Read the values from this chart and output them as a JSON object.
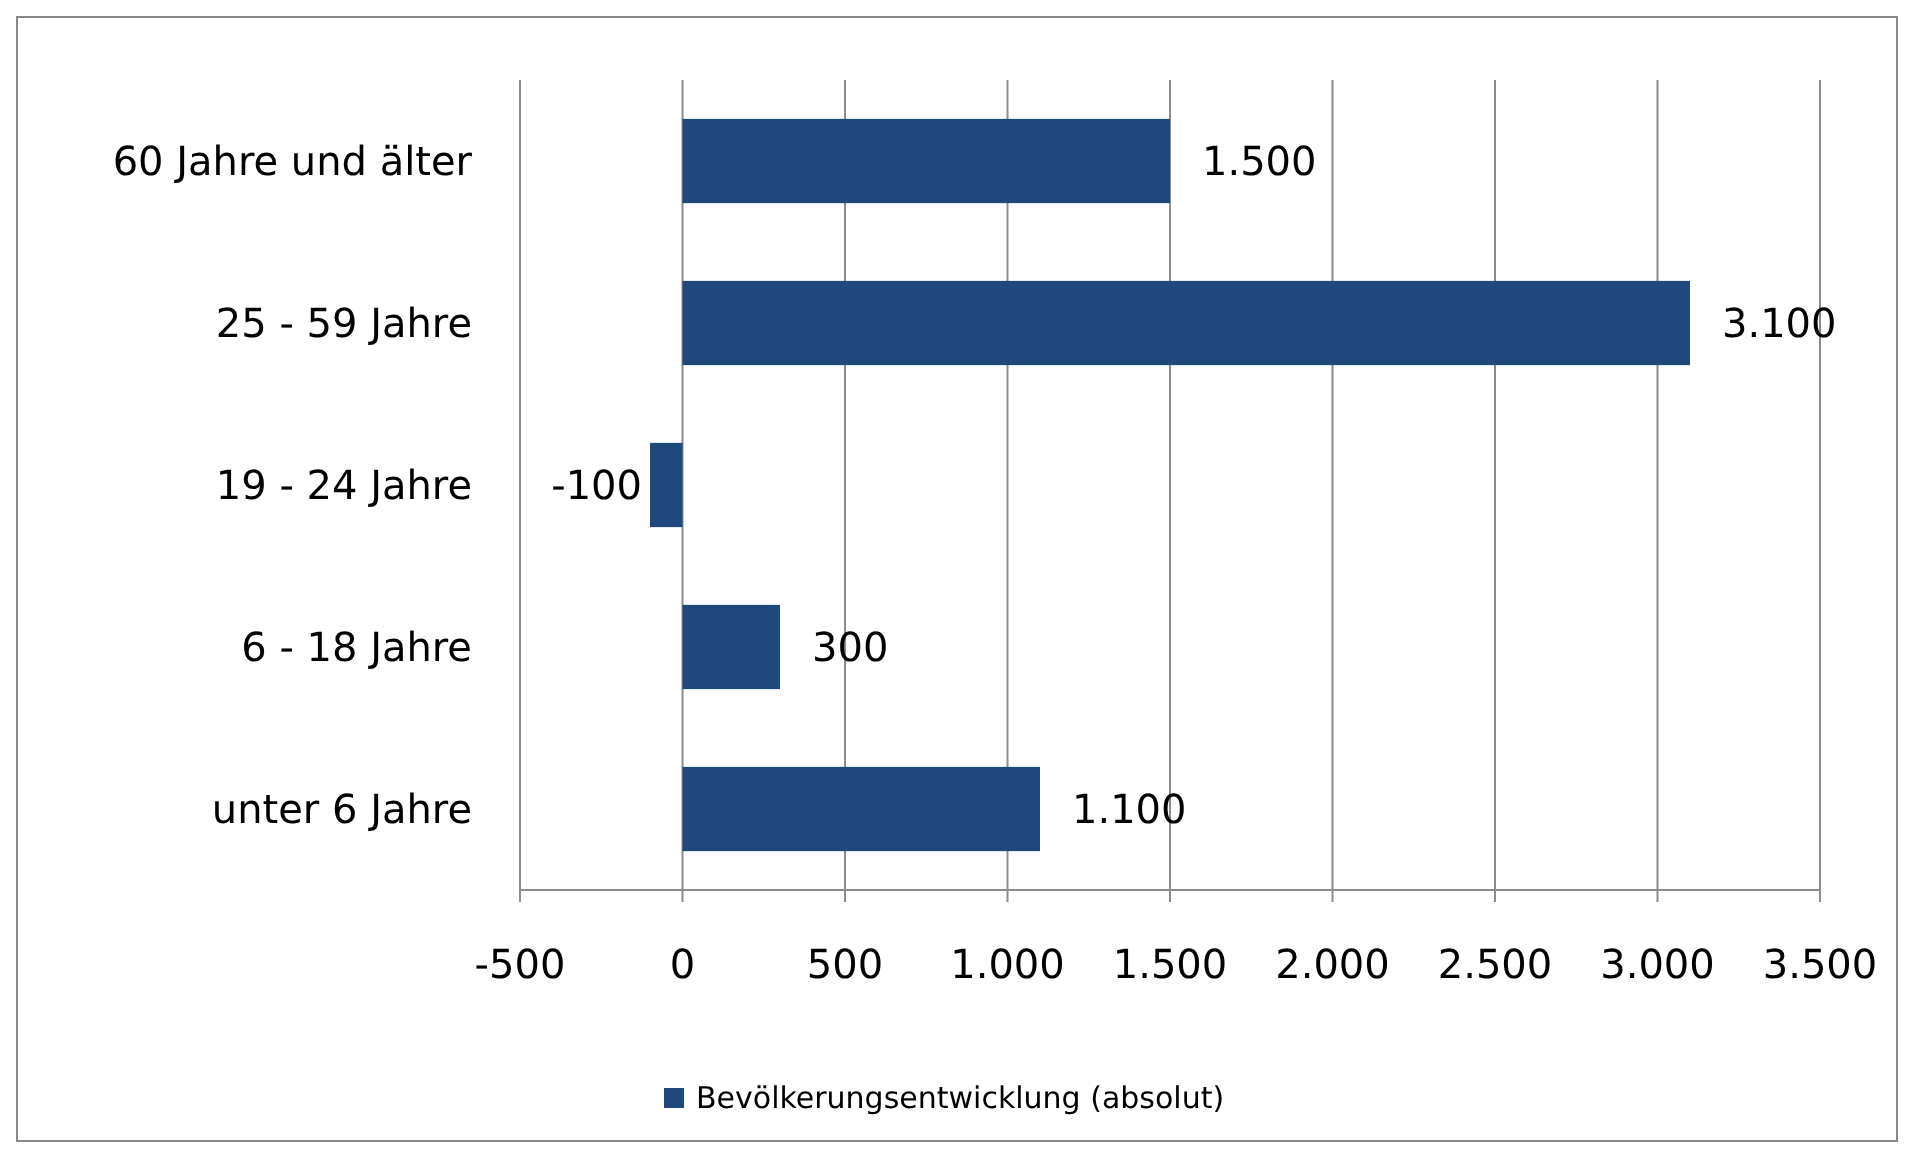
{
  "chart_data": {
    "type": "bar",
    "orientation": "horizontal",
    "categories": [
      "60 Jahre und älter",
      "25 - 59 Jahre",
      "19 - 24 Jahre",
      "6 - 18 Jahre",
      "unter 6 Jahre"
    ],
    "series": [
      {
        "name": "Bevölkerungsentwicklung (absolut)",
        "color": "#1f497d",
        "values": [
          1500,
          3100,
          -100,
          300,
          1100
        ],
        "value_labels": [
          "1.500",
          "3.100",
          "-100",
          "300",
          "1.100"
        ]
      }
    ],
    "xlim": [
      -500,
      3500
    ],
    "xticks": [
      {
        "value": -500,
        "label": "-500"
      },
      0,
      500,
      {
        "value": 1000,
        "label": "1.000"
      },
      {
        "value": 1500,
        "label": "1.500"
      },
      {
        "value": 2000,
        "label": "2.000"
      },
      {
        "value": 2500,
        "label": "2.500"
      },
      {
        "value": 3000,
        "label": "3.000"
      },
      {
        "value": 3500,
        "label": "3.500"
      }
    ],
    "grid": "x",
    "legend": "bottom"
  }
}
